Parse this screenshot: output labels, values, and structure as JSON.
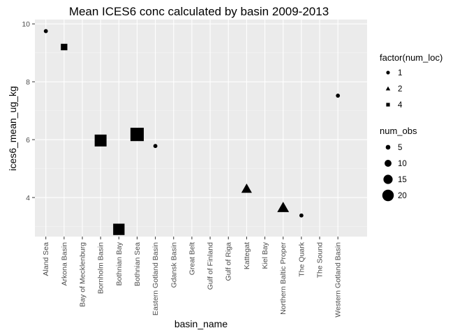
{
  "chart_data": {
    "type": "scatter",
    "title": "Mean ICES6 conc calculated by basin 2009-2013",
    "xlabel": "basin_name",
    "ylabel": "ices6_mean_ug_kg",
    "categories": [
      "Aland Sea",
      "Arkona Basin",
      "Bay of Mecklenburg",
      "Bornholm Basin",
      "Bothnian Bay",
      "Bothnian Sea",
      "Eastern Gotland Basin",
      "Gdansk Basin",
      "Great Belt",
      "Gulf of Finland",
      "Gulf of Riga",
      "Kattegat",
      "Kiel Bay",
      "Northern Baltic Proper",
      "The Quark",
      "The Sound",
      "Western Gotland Basin"
    ],
    "ylim": [
      2.65,
      10.15
    ],
    "yticks": [
      4,
      6,
      8,
      10
    ],
    "grid": true,
    "legend_position": "right",
    "points": [
      {
        "category": "Aland Sea",
        "y": 9.75,
        "num_loc": 1,
        "num_obs": 3
      },
      {
        "category": "Arkona Basin",
        "y": 9.2,
        "num_loc": 4,
        "num_obs": 8
      },
      {
        "category": "Bornholm Basin",
        "y": 5.97,
        "num_loc": 4,
        "num_obs": 19
      },
      {
        "category": "Bothnian Bay",
        "y": 2.9,
        "num_loc": 4,
        "num_obs": 18
      },
      {
        "category": "Bothnian Sea",
        "y": 6.18,
        "num_loc": 4,
        "num_obs": 22
      },
      {
        "category": "Eastern Gotland Basin",
        "y": 5.78,
        "num_loc": 1,
        "num_obs": 3
      },
      {
        "category": "Kattegat",
        "y": 4.3,
        "num_loc": 2,
        "num_obs": 12
      },
      {
        "category": "Northern Baltic Proper",
        "y": 3.65,
        "num_loc": 2,
        "num_obs": 14
      },
      {
        "category": "The Quark",
        "y": 3.38,
        "num_loc": 1,
        "num_obs": 3
      },
      {
        "category": "Western Gotland Basin",
        "y": 7.52,
        "num_loc": 1,
        "num_obs": 3
      }
    ],
    "legends": [
      {
        "title": "factor(num_loc)",
        "items": [
          {
            "label": "1",
            "shape": "circle"
          },
          {
            "label": "2",
            "shape": "triangle"
          },
          {
            "label": "4",
            "shape": "square"
          }
        ]
      },
      {
        "title": "num_obs",
        "items": [
          {
            "label": "5",
            "value": 5
          },
          {
            "label": "10",
            "value": 10
          },
          {
            "label": "15",
            "value": 15
          },
          {
            "label": "20",
            "value": 20
          }
        ]
      }
    ],
    "colors": {
      "panel": "#ebebeb",
      "grid_major": "#ffffff",
      "grid_minor": "#f5f5f5",
      "point": "#000000",
      "tick_text": "#4d4d4d"
    }
  }
}
